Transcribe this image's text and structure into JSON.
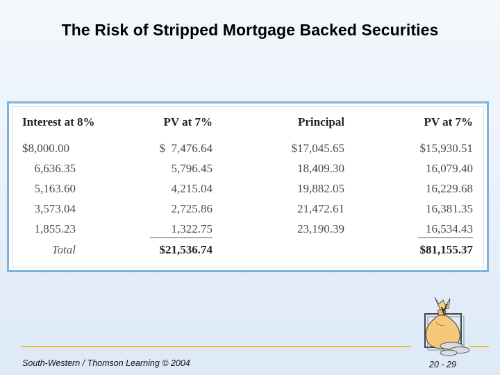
{
  "slide": {
    "title": "The Risk of Stripped Mortgage Backed Securities"
  },
  "table": {
    "headers": [
      "Interest at 8%",
      "PV at 7%",
      "Principal",
      "PV at 7%"
    ],
    "rows": [
      [
        "$8,000.00",
        "$  7,476.64",
        "$17,045.65",
        "$15,930.51"
      ],
      [
        "6,636.35",
        "5,796.45",
        "18,409.30",
        "16,079.40"
      ],
      [
        "5,163.60",
        "4,215.04",
        "19,882.05",
        "16,229.68"
      ],
      [
        "3,573.04",
        "2,725.86",
        "21,472.61",
        "16,381.35"
      ],
      [
        "1,855.23",
        "1,322.75",
        "23,190.39",
        "16,534.43"
      ]
    ],
    "total": {
      "label": "Total",
      "pv_interest": "$21,536.74",
      "pv_principal": "$81,155.37"
    }
  },
  "footer": {
    "publisher": "South-Western / Thomson Learning © 2004",
    "page": "20 - 29"
  },
  "icons": {
    "logo": "money-bag-logo-icon"
  },
  "colors": {
    "frame": "#7fb2d8",
    "footer_rule": "#f2c21a",
    "bag": "#f5c87a"
  }
}
